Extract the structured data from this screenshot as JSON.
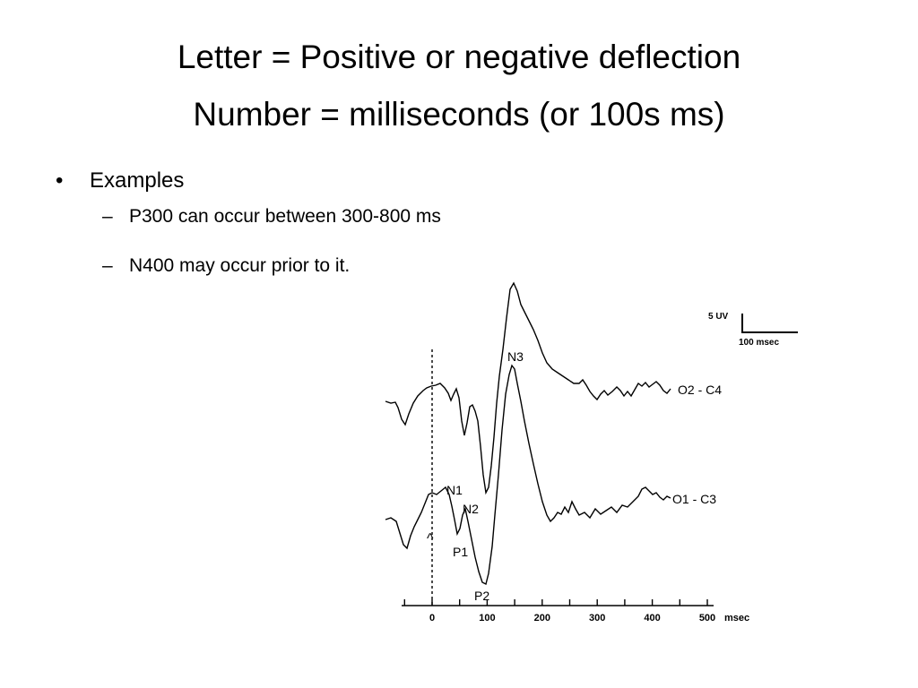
{
  "slide": {
    "title_line_1": "Letter = Positive or negative deflection",
    "title_line_2": "Number = milliseconds (or 100s ms)"
  },
  "bullets": {
    "main": {
      "marker": "•",
      "text": "Examples"
    },
    "sub": [
      {
        "marker": "–",
        "text": "P300 can occur between 300-800 ms"
      },
      {
        "marker": "–",
        "text": "N400 may occur prior to it."
      }
    ]
  },
  "figure": {
    "scale_bar": {
      "voltage": "5 UV",
      "time": "100 msec"
    },
    "axis_unit": "msec",
    "tick_labels": [
      "0",
      "100",
      "200",
      "300",
      "400",
      "500"
    ],
    "stimulus_marker": "^",
    "channels": [
      "O2 - C4",
      "O1 - C3"
    ],
    "peaks": [
      "N1",
      "N2",
      "N3",
      "P1",
      "P2"
    ]
  }
}
